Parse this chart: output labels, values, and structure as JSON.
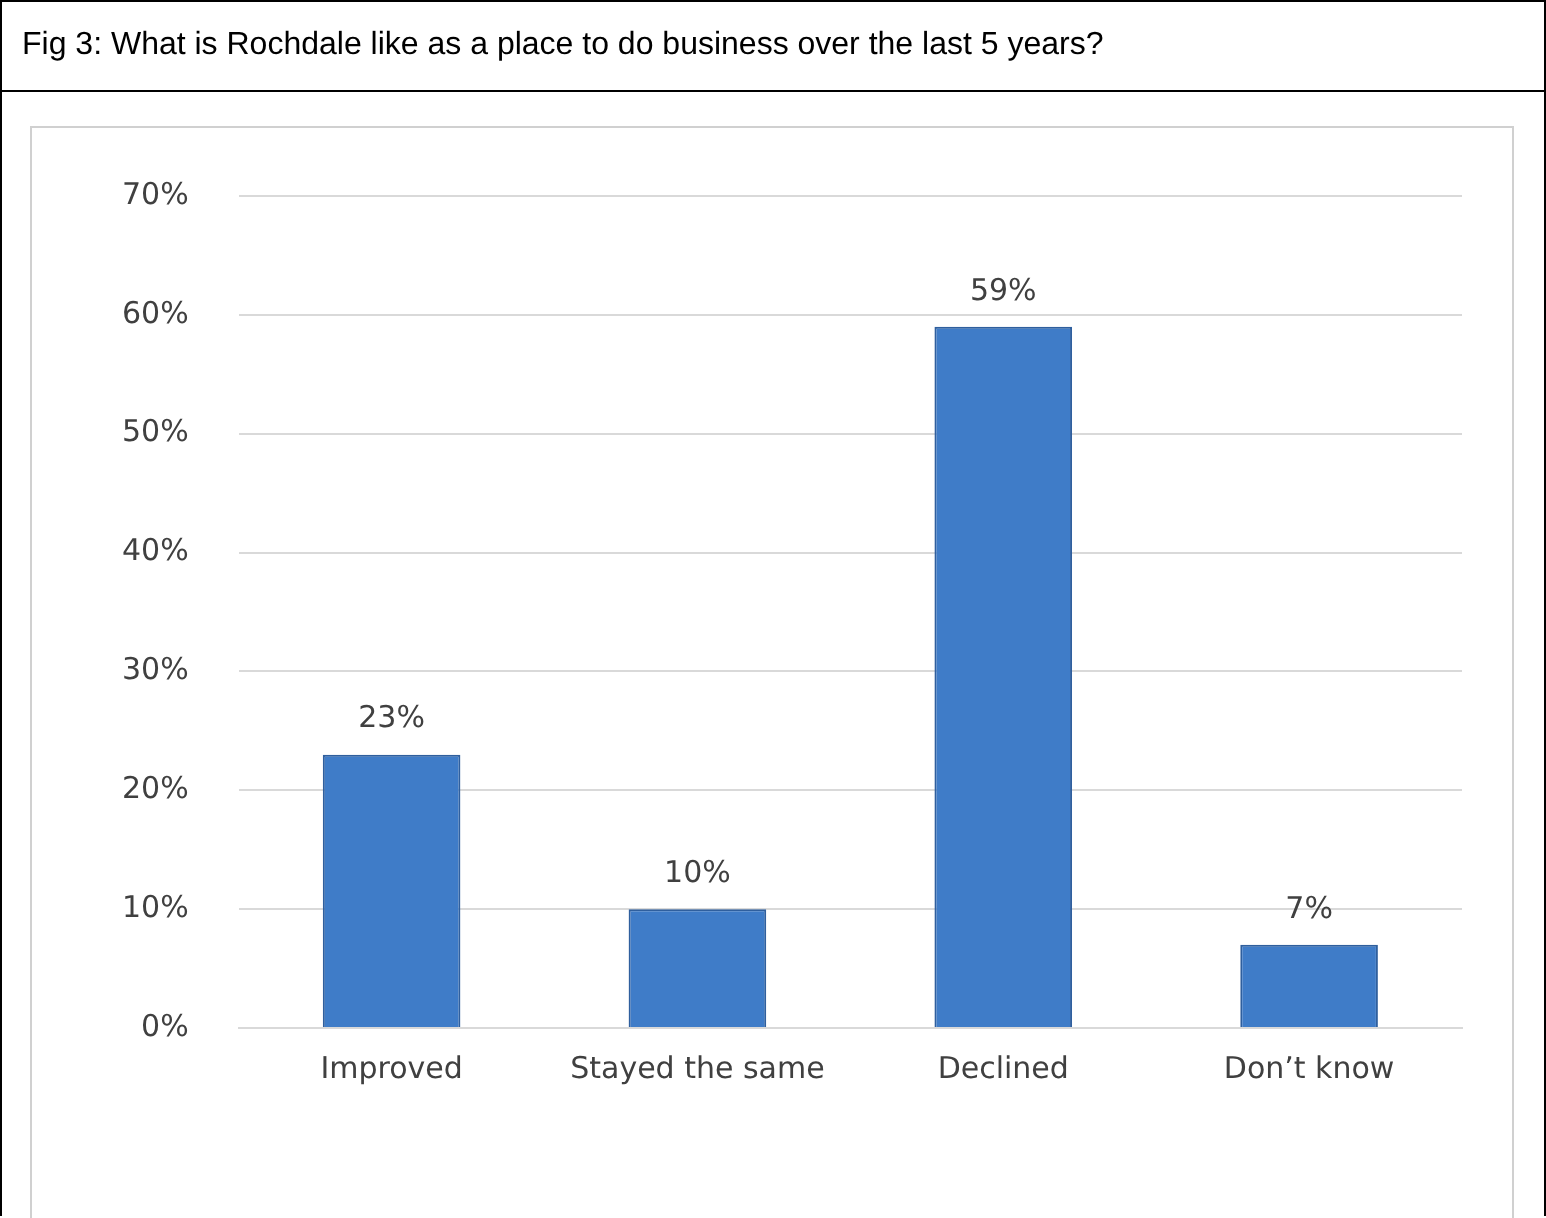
{
  "chart_data": {
    "type": "bar",
    "title": "Fig 3: What is Rochdale like as a place to do business over the last 5 years?",
    "categories": [
      "Improved",
      "Stayed the same",
      "Declined",
      "Don’t know"
    ],
    "values": [
      23,
      10,
      59,
      7
    ],
    "value_labels": [
      "23%",
      "10%",
      "59%",
      "7%"
    ],
    "color": "#3f7cc8",
    "ylim": [
      0,
      70
    ],
    "yticks": [
      {
        "value": 0,
        "label": "0%"
      },
      {
        "value": 10,
        "label": "10%"
      },
      {
        "value": 20,
        "label": "20%"
      },
      {
        "value": 30,
        "label": "30%"
      },
      {
        "value": 40,
        "label": "40%"
      },
      {
        "value": 50,
        "label": "50%"
      },
      {
        "value": 60,
        "label": "60%"
      },
      {
        "value": 70,
        "label": "70%"
      }
    ],
    "grid": "y",
    "legend": false
  }
}
